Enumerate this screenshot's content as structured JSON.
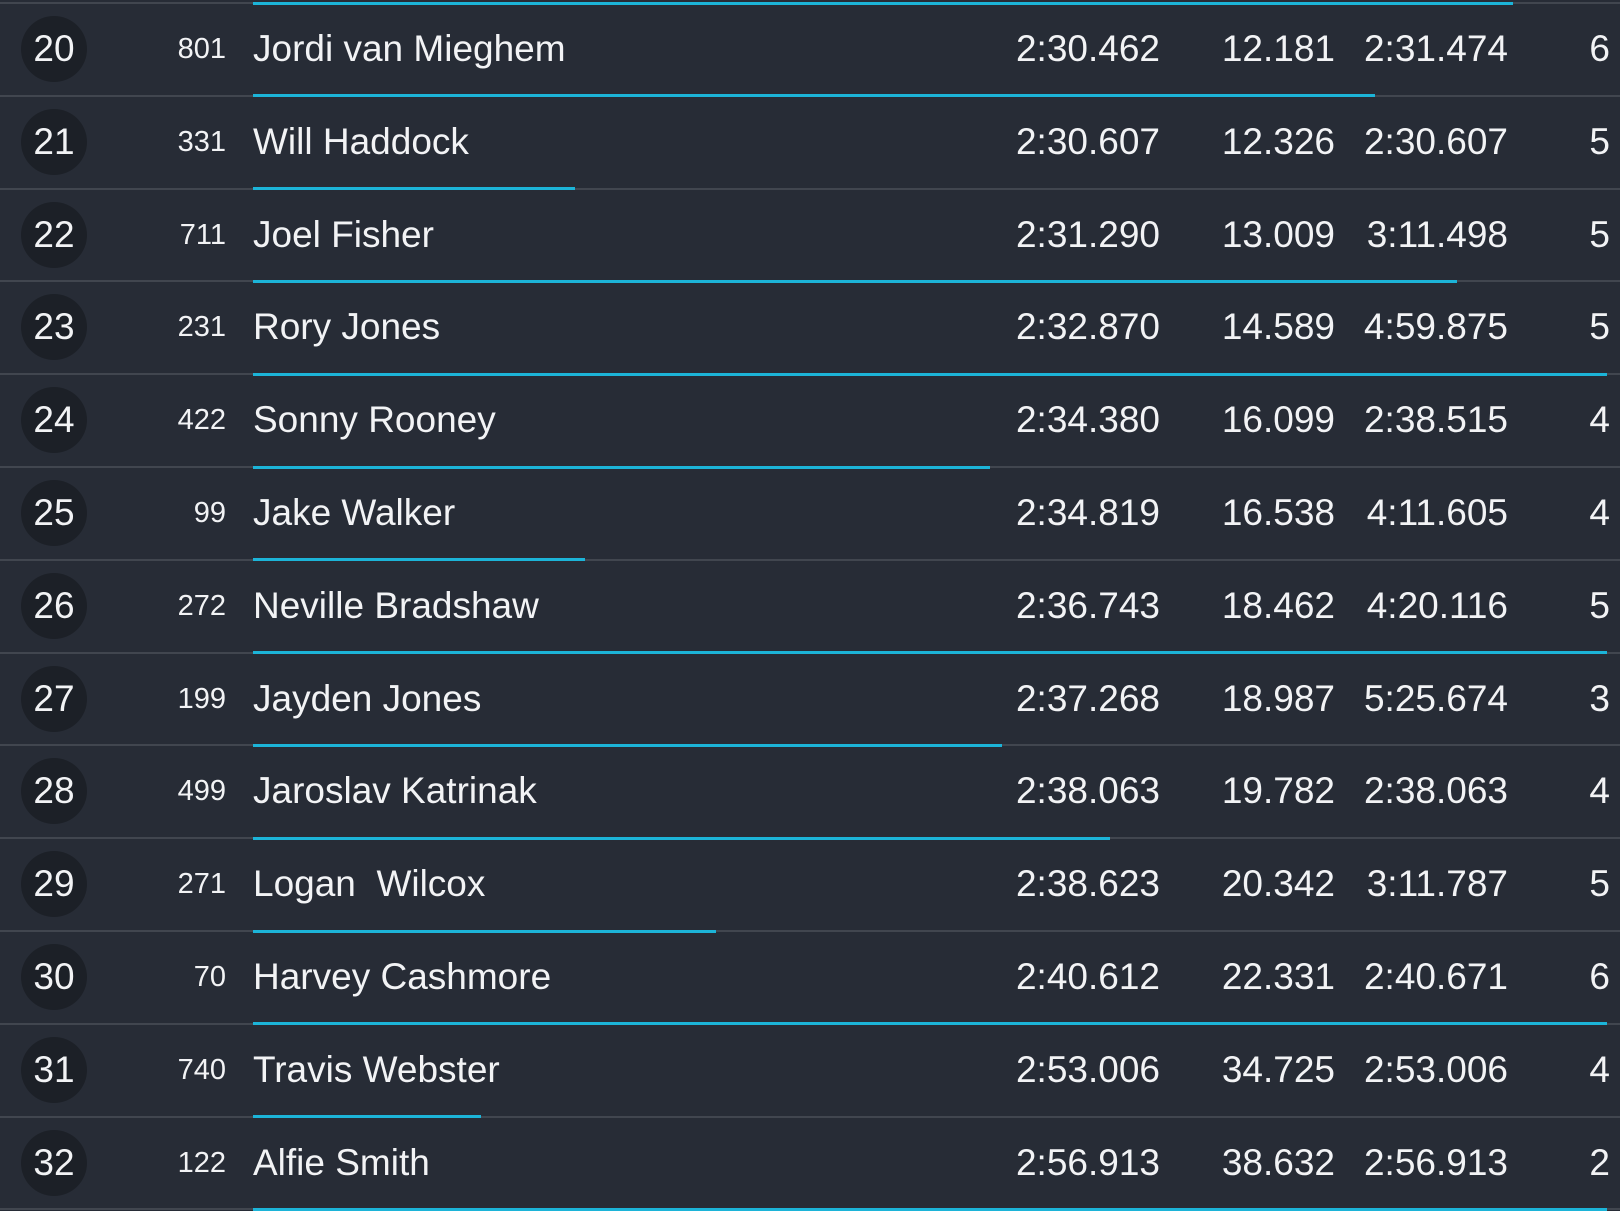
{
  "rows": [
    {
      "position": 20,
      "number": 801,
      "name": "Jordi van Mieghem",
      "best": "2:30.462",
      "gap": "12.181",
      "last": "2:31.474",
      "laps": 6
    },
    {
      "position": 21,
      "number": 331,
      "name": "Will Haddock",
      "best": "2:30.607",
      "gap": "12.326",
      "last": "2:30.607",
      "laps": 5
    },
    {
      "position": 22,
      "number": 711,
      "name": "Joel Fisher",
      "best": "2:31.290",
      "gap": "13.009",
      "last": "3:11.498",
      "laps": 5
    },
    {
      "position": 23,
      "number": 231,
      "name": "Rory Jones",
      "best": "2:32.870",
      "gap": "14.589",
      "last": "4:59.875",
      "laps": 5
    },
    {
      "position": 24,
      "number": 422,
      "name": "Sonny Rooney",
      "best": "2:34.380",
      "gap": "16.099",
      "last": "2:38.515",
      "laps": 4
    },
    {
      "position": 25,
      "number": 99,
      "name": "Jake Walker",
      "best": "2:34.819",
      "gap": "16.538",
      "last": "4:11.605",
      "laps": 4
    },
    {
      "position": 26,
      "number": 272,
      "name": "Neville Bradshaw",
      "best": "2:36.743",
      "gap": "18.462",
      "last": "4:20.116",
      "laps": 5
    },
    {
      "position": 27,
      "number": 199,
      "name": "Jayden Jones",
      "best": "2:37.268",
      "gap": "18.987",
      "last": "5:25.674",
      "laps": 3
    },
    {
      "position": 28,
      "number": 499,
      "name": "Jaroslav Katrinak",
      "best": "2:38.063",
      "gap": "19.782",
      "last": "2:38.063",
      "laps": 4
    },
    {
      "position": 29,
      "number": 271,
      "name": "Logan  Wilcox",
      "best": "2:38.623",
      "gap": "20.342",
      "last": "3:11.787",
      "laps": 5
    },
    {
      "position": 30,
      "number": 70,
      "name": "Harvey Cashmore",
      "best": "2:40.612",
      "gap": "22.331",
      "last": "2:40.671",
      "laps": 6
    },
    {
      "position": 31,
      "number": 740,
      "name": "Travis Webster",
      "best": "2:53.006",
      "gap": "34.725",
      "last": "2:53.006",
      "laps": 4
    },
    {
      "position": 32,
      "number": 122,
      "name": "Alfie Smith",
      "best": "2:56.913",
      "gap": "38.632",
      "last": "2:56.913",
      "laps": 2
    }
  ]
}
